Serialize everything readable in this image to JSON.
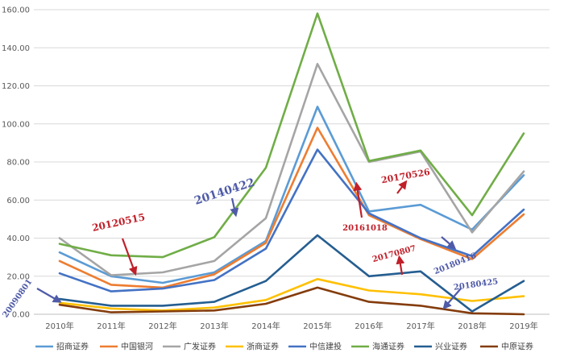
{
  "chart_data": {
    "type": "line",
    "categories": [
      "2010年",
      "2011年",
      "2012年",
      "2013年",
      "2014年",
      "2015年",
      "2016年",
      "2017年",
      "2018年",
      "2019年"
    ],
    "ylim": [
      0,
      160
    ],
    "yticks": [
      "0.00",
      "20.00",
      "40.00",
      "60.00",
      "80.00",
      "100.00",
      "120.00",
      "140.00",
      "160.00"
    ],
    "grid": true,
    "legend_position": "bottom",
    "series": [
      {
        "name": "招商证券",
        "color": "#5B9BD5",
        "values": [
          32.5,
          20.0,
          16.5,
          22.0,
          38.5,
          109.0,
          54.0,
          57.5,
          44.5,
          73.0
        ]
      },
      {
        "name": "中国银河",
        "color": "#ED7D31",
        "values": [
          28.0,
          15.5,
          14.0,
          21.0,
          37.5,
          98.0,
          52.0,
          39.5,
          29.0,
          52.5
        ]
      },
      {
        "name": "广发证券",
        "color": "#A5A5A5",
        "values": [
          40.0,
          20.5,
          22.0,
          28.0,
          50.5,
          131.5,
          80.0,
          85.5,
          43.0,
          75.0
        ]
      },
      {
        "name": "浙商证券",
        "color": "#FFC000",
        "values": [
          6.0,
          3.0,
          2.0,
          3.5,
          7.5,
          18.5,
          12.5,
          10.5,
          7.0,
          9.5
        ]
      },
      {
        "name": "中信建投",
        "color": "#4472C4",
        "values": [
          21.5,
          12.0,
          13.5,
          18.0,
          34.5,
          86.5,
          53.0,
          40.0,
          30.5,
          55.0
        ]
      },
      {
        "name": "海通证券",
        "color": "#70AD47",
        "values": [
          37.0,
          31.0,
          30.0,
          40.5,
          77.0,
          158.0,
          80.5,
          86.0,
          52.0,
          95.0
        ]
      },
      {
        "name": "兴业证券",
        "color": "#255E91",
        "values": [
          8.0,
          4.5,
          4.5,
          6.5,
          17.5,
          41.5,
          20.0,
          22.5,
          1.5,
          17.5
        ]
      },
      {
        "name": "中原证券",
        "color": "#843C0C",
        "values": [
          5.0,
          1.0,
          1.5,
          2.0,
          5.5,
          14.0,
          6.5,
          4.5,
          0.5,
          0.0
        ]
      }
    ],
    "annotations": [
      {
        "label": "20090801",
        "color": "#4F5BA8"
      },
      {
        "label": "20120515",
        "color": "#C0202A"
      },
      {
        "label": "20140422",
        "color": "#4F5BA8"
      },
      {
        "label": "20161018",
        "color": "#C0202A"
      },
      {
        "label": "20170526",
        "color": "#C0202A"
      },
      {
        "label": "20170807",
        "color": "#C0202A"
      },
      {
        "label": "20180416",
        "color": "#4F5BA8"
      },
      {
        "label": "20180425",
        "color": "#4F5BA8"
      }
    ]
  }
}
